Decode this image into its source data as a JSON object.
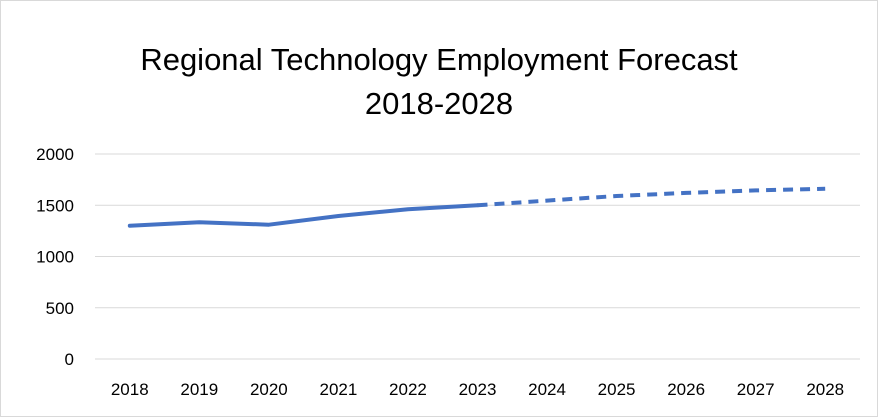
{
  "chart_data": {
    "type": "line",
    "title": "Regional Technology Employment Forecast",
    "subtitle": "2018-2028",
    "xlabel": "",
    "ylabel": "",
    "categories": [
      "2018",
      "2019",
      "2020",
      "2021",
      "2022",
      "2023",
      "2024",
      "2025",
      "2026",
      "2027",
      "2028"
    ],
    "ylim": [
      0,
      2000
    ],
    "yticks": [
      "0",
      "500",
      "1000",
      "1500",
      "2000"
    ],
    "grid": true,
    "legend": "none",
    "series": [
      {
        "values": [
          1300,
          1335,
          1310,
          1395,
          1460,
          1500,
          1545,
          1590,
          1620,
          1645,
          1660
        ],
        "actual_through": "2023",
        "forecast_style": "dashed",
        "color": "#4472c4"
      }
    ]
  }
}
